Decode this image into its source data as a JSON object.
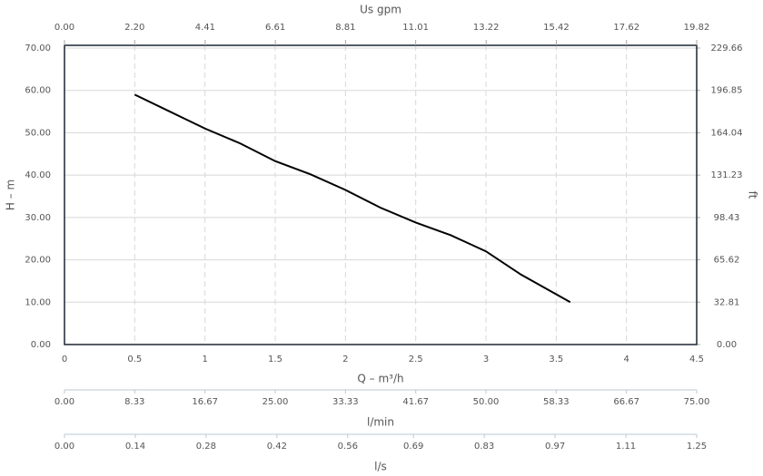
{
  "chart_data": {
    "type": "line",
    "xlabel": "Q – m³/h",
    "ylabel": "H – m",
    "y2label": "ft",
    "x": [
      0.5,
      0.75,
      1.0,
      1.25,
      1.5,
      1.75,
      2.0,
      2.25,
      2.5,
      2.75,
      3.0,
      3.25,
      3.6
    ],
    "values": [
      59,
      55,
      51,
      47.5,
      43.3,
      40.2,
      36.5,
      32.3,
      28.8,
      25.8,
      22,
      16.5,
      10
    ],
    "color": "#000000",
    "xlim": [
      0,
      4.5
    ],
    "xticks": [
      0,
      0.5,
      1,
      1.5,
      2,
      2.5,
      3,
      3.5,
      4,
      4.5
    ],
    "ylim": [
      0,
      70
    ],
    "yticks": [
      {
        "value": 0,
        "label": "0.00"
      },
      {
        "value": 10,
        "label": "10.00"
      },
      {
        "value": 20,
        "label": "20.00"
      },
      {
        "value": 30,
        "label": "30.00"
      },
      {
        "value": 40,
        "label": "40.00"
      },
      {
        "value": 50,
        "label": "50.00"
      },
      {
        "value": 60,
        "label": "60.00"
      },
      {
        "value": 70,
        "label": "70.00"
      }
    ],
    "y2lim": [
      0,
      229.66
    ],
    "y2ticks": [
      {
        "value": 0,
        "label": "0.00"
      },
      32.81,
      65.62,
      98.43,
      131.23,
      164.04,
      196.85,
      229.66
    ],
    "grid": true,
    "top_axis": {
      "label": "Us gpm",
      "lim": [
        0,
        19.82
      ],
      "ticks": [
        {
          "value": 0,
          "label": "0.00"
        },
        {
          "value": 2.2,
          "label": "2.20"
        },
        4.41,
        6.61,
        8.81,
        11.01,
        13.22,
        15.42,
        17.62,
        19.82
      ]
    },
    "bottom_axes": [
      {
        "label": "l/min",
        "lim": [
          0,
          75
        ],
        "ticks": [
          {
            "value": 0,
            "label": "0.00"
          },
          8.33,
          16.67,
          {
            "value": 25,
            "label": "25.00"
          },
          33.33,
          41.67,
          {
            "value": 50,
            "label": "50.00"
          },
          58.33,
          66.67,
          {
            "value": 75,
            "label": "75.00"
          }
        ]
      },
      {
        "label": "l/s",
        "lim": [
          0,
          1.25
        ],
        "ticks": [
          {
            "value": 0,
            "label": "0.00"
          },
          0.14,
          0.28,
          0.42,
          0.56,
          0.69,
          0.83,
          0.97,
          1.11,
          1.25
        ]
      }
    ]
  }
}
